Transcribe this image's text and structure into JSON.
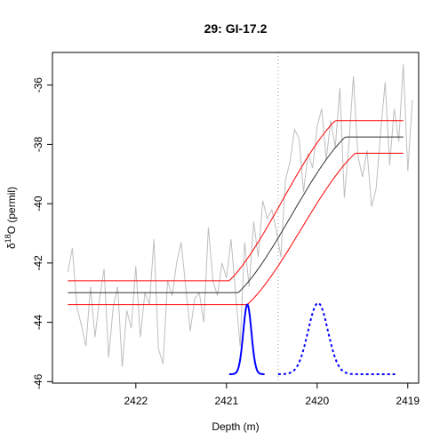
{
  "chart_data": {
    "type": "line",
    "title": "29: GI-17.2",
    "xlabel": "Depth (m)",
    "ylabel_parts": [
      "δ",
      "18",
      "O (permil)"
    ],
    "x_reversed": true,
    "xlim": [
      2422.92,
      2418.88
    ],
    "ylim": [
      -46.05,
      -34.9
    ],
    "x_ticks": [
      {
        "value": 2422,
        "label": "2422"
      },
      {
        "value": 2421,
        "label": "2421"
      },
      {
        "value": 2420,
        "label": "2420"
      },
      {
        "value": 2419,
        "label": "2419"
      }
    ],
    "y_ticks": [
      {
        "value": -36,
        "label": "-36"
      },
      {
        "value": -38,
        "label": "-38"
      },
      {
        "value": -40,
        "label": "-40"
      },
      {
        "value": -42,
        "label": "-42"
      },
      {
        "value": -44,
        "label": "-44"
      },
      {
        "value": -46,
        "label": "-46"
      }
    ],
    "transition_line": {
      "x": 2420.43,
      "color": "#999999",
      "style": "dotted"
    },
    "series": [
      {
        "id": "data",
        "color": "#bebebe",
        "width": 1,
        "x": [
          2422.75,
          2422.7,
          2422.65,
          2422.6,
          2422.55,
          2422.5,
          2422.45,
          2422.4,
          2422.35,
          2422.3,
          2422.25,
          2422.2,
          2422.15,
          2422.1,
          2422.05,
          2422.0,
          2421.95,
          2421.9,
          2421.85,
          2421.8,
          2421.75,
          2421.7,
          2421.65,
          2421.6,
          2421.55,
          2421.5,
          2421.45,
          2421.4,
          2421.35,
          2421.3,
          2421.25,
          2421.2,
          2421.15,
          2421.1,
          2421.05,
          2421.0,
          2420.95,
          2420.9,
          2420.85,
          2420.8,
          2420.75,
          2420.7,
          2420.65,
          2420.6,
          2420.55,
          2420.5,
          2420.45,
          2420.4,
          2420.35,
          2420.3,
          2420.25,
          2420.2,
          2420.15,
          2420.1,
          2420.05,
          2420.0,
          2419.95,
          2419.9,
          2419.85,
          2419.8,
          2419.75,
          2419.7,
          2419.65,
          2419.6,
          2419.55,
          2419.5,
          2419.45,
          2419.4,
          2419.35,
          2419.3,
          2419.25,
          2419.2,
          2419.15,
          2419.1,
          2419.05,
          2419.0,
          2418.95
        ],
        "y": [
          -42.3,
          -41.5,
          -43.5,
          -44.1,
          -44.8,
          -42.8,
          -44.5,
          -43.2,
          -42.2,
          -45.2,
          -43.5,
          -42.8,
          -45.5,
          -43.6,
          -44.2,
          -42.1,
          -44.5,
          -43.0,
          -43.4,
          -41.2,
          -44.9,
          -45.4,
          -42.6,
          -43.1,
          -42.0,
          -41.3,
          -42.8,
          -44.3,
          -43.2,
          -43.0,
          -44.0,
          -40.8,
          -42.6,
          -43.1,
          -42.0,
          -42.5,
          -41.2,
          -43.0,
          -44.8,
          -41.3,
          -42.8,
          -40.6,
          -41.8,
          -39.9,
          -40.5,
          -40.2,
          -40.9,
          -41.8,
          -39.2,
          -38.6,
          -37.5,
          -37.8,
          -39.6,
          -38.3,
          -38.8,
          -37.4,
          -36.8,
          -38.5,
          -37.2,
          -38.1,
          -36.1,
          -39.8,
          -38.0,
          -35.7,
          -38.4,
          -39.1,
          -38.2,
          -40.1,
          -39.5,
          -37.6,
          -35.9,
          -38.7,
          -36.8,
          -37.9,
          -35.3,
          -38.9,
          -36.5
        ]
      },
      {
        "id": "fit",
        "color": "#333333",
        "width": 1,
        "curve": {
          "x0": 2420.87,
          "x1": 2419.69,
          "y0": -43.0,
          "y1": -37.75,
          "x_from": 2422.75,
          "x_to": 2419.05
        }
      },
      {
        "id": "fit-upper",
        "color": "#ff0000",
        "width": 1,
        "curve": {
          "x0": 2420.97,
          "x1": 2419.8,
          "y0": -42.6,
          "y1": -37.2,
          "x_from": 2422.75,
          "x_to": 2419.05
        }
      },
      {
        "id": "fit-lower",
        "color": "#ff0000",
        "width": 1,
        "curve": {
          "x0": 2420.77,
          "x1": 2419.58,
          "y0": -43.4,
          "y1": -38.3,
          "x_from": 2422.75,
          "x_to": 2419.05
        }
      }
    ],
    "densities": [
      {
        "id": "onset-density",
        "color": "#0000ff",
        "style": "solid",
        "center": 2420.77,
        "sd": 0.045,
        "x_from": 2420.97,
        "x_to": 2420.58,
        "base_y": -45.75,
        "peak_y": -43.4
      },
      {
        "id": "end-density",
        "color": "#0000ff",
        "style": "dashed",
        "center": 2419.99,
        "sd": 0.11,
        "x_from": 2420.43,
        "x_to": 2419.14,
        "base_y": -45.75,
        "peak_y": -43.35
      }
    ]
  }
}
